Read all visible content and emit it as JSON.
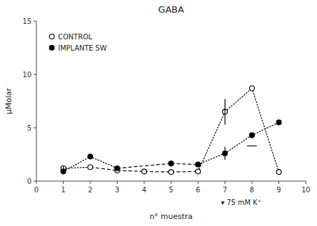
{
  "chart_data": {
    "type": "line",
    "title": "GABA",
    "x_label": "n° muestra",
    "y_label": "μMolar",
    "xlim": [
      0,
      10
    ],
    "ylim": [
      0,
      15
    ],
    "xticks": [
      0,
      1,
      2,
      3,
      4,
      5,
      6,
      7,
      8,
      9,
      10
    ],
    "yticks": [
      0,
      5,
      10,
      15
    ],
    "grid": false,
    "legend": "upper-left",
    "annotations": [
      {
        "text": "▾ 75 mM  K⁺",
        "x": 6.85
      }
    ],
    "series": [
      {
        "name": "CONTROL",
        "color": "black",
        "marker": "open-circle",
        "x": [
          1,
          2,
          3,
          4,
          5,
          6,
          7,
          8,
          9
        ],
        "values": [
          1.2,
          1.3,
          1.0,
          0.9,
          0.85,
          0.9,
          6.5,
          8.7,
          0.85
        ],
        "errors": [
          0.25,
          null,
          null,
          null,
          null,
          null,
          1.2,
          null,
          null
        ],
        "segments": [
          {
            "x": [
              1,
              2
            ],
            "line_style": "dotted"
          },
          {
            "x": [
              2,
              3
            ],
            "line_style": "dashed"
          },
          {
            "x": [
              3,
              4
            ],
            "line_style": "dashed"
          },
          {
            "x": [
              4,
              5
            ],
            "line_style": "dashed"
          },
          {
            "x": [
              5,
              6
            ],
            "line_style": "dashed"
          },
          {
            "x": [
              6,
              7
            ],
            "line_style": "dotted"
          },
          {
            "x": [
              7,
              8
            ],
            "line_style": "dotted"
          },
          {
            "x": [
              8,
              9
            ],
            "line_style": "dotted"
          }
        ]
      },
      {
        "name": "IMPLANTE SW",
        "color": "black",
        "marker": "filled-circle",
        "x": [
          1,
          2,
          3,
          5,
          6,
          7,
          8,
          9
        ],
        "values": [
          0.9,
          2.3,
          1.2,
          1.65,
          1.55,
          2.6,
          4.3,
          5.5
        ],
        "errors": [
          null,
          null,
          null,
          null,
          null,
          0.6,
          null,
          null
        ],
        "range_mark": {
          "y": 3.3,
          "x1": 7.82,
          "x2": 8.18
        },
        "segments": [
          {
            "x": [
              1,
              2
            ],
            "line_style": "dotted"
          },
          {
            "x": [
              2,
              3
            ],
            "line_style": "dotted"
          },
          {
            "x": [
              3,
              5
            ],
            "line_style": "dashed"
          },
          {
            "x": [
              5,
              6
            ],
            "line_style": "dashed"
          },
          {
            "x": [
              6,
              7
            ],
            "line_style": "dotted"
          },
          {
            "x": [
              7,
              8
            ],
            "line_style": "dotted"
          },
          {
            "x": [
              8,
              9
            ],
            "line_style": "dotted"
          }
        ]
      }
    ]
  }
}
